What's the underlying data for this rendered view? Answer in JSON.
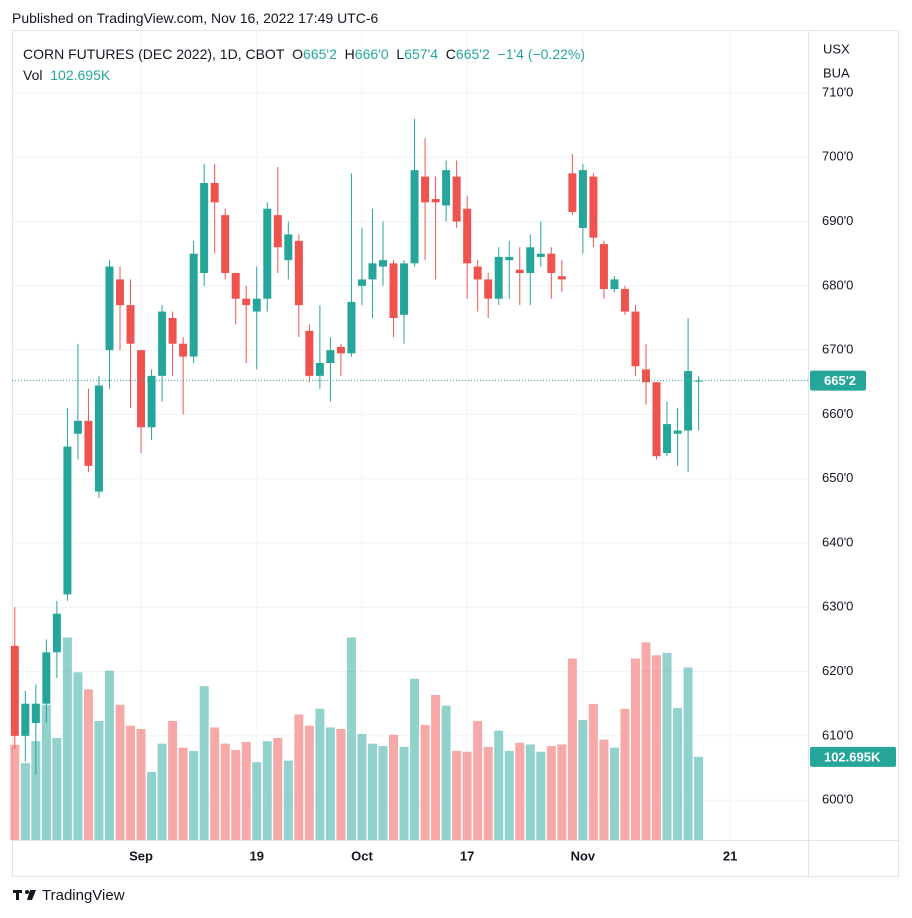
{
  "header": {
    "published": "Published on TradingView.com, Nov 16, 2022 17:49 UTC-6",
    "footer": "TradingView"
  },
  "chart_data": {
    "type": "candlestick",
    "title": "CORN FUTURES (DEC 2022), 1D, CBOT",
    "ohlc_legend": [
      {
        "key": "O",
        "value": "665'2"
      },
      {
        "key": "H",
        "value": "666'0"
      },
      {
        "key": "L",
        "value": "657'4"
      },
      {
        "key": "C",
        "value": "665'2"
      }
    ],
    "change": "−1'4 (−0.22%)",
    "volume_legend": {
      "key": "Vol",
      "value": "102.695K"
    },
    "currency": "USX",
    "unit": "BUA",
    "x": [
      "2022-08-16",
      "2022-08-17",
      "2022-08-18",
      "2022-08-19",
      "2022-08-22",
      "2022-08-23",
      "2022-08-24",
      "2022-08-25",
      "2022-08-26",
      "2022-08-29",
      "2022-08-30",
      "2022-08-31",
      "2022-09-01",
      "2022-09-02",
      "2022-09-06",
      "2022-09-07",
      "2022-09-08",
      "2022-09-09",
      "2022-09-12",
      "2022-09-13",
      "2022-09-14",
      "2022-09-15",
      "2022-09-16",
      "2022-09-19",
      "2022-09-20",
      "2022-09-21",
      "2022-09-22",
      "2022-09-23",
      "2022-09-26",
      "2022-09-27",
      "2022-09-28",
      "2022-09-29",
      "2022-09-30",
      "2022-10-03",
      "2022-10-04",
      "2022-10-05",
      "2022-10-06",
      "2022-10-07",
      "2022-10-10",
      "2022-10-11",
      "2022-10-12",
      "2022-10-13",
      "2022-10-14",
      "2022-10-17",
      "2022-10-18",
      "2022-10-19",
      "2022-10-20",
      "2022-10-21",
      "2022-10-24",
      "2022-10-25",
      "2022-10-26",
      "2022-10-27",
      "2022-10-28",
      "2022-10-31",
      "2022-11-01",
      "2022-11-02",
      "2022-11-03",
      "2022-11-04",
      "2022-11-07",
      "2022-11-08",
      "2022-11-09",
      "2022-11-10",
      "2022-11-11",
      "2022-11-14",
      "2022-11-15",
      "2022-11-16"
    ],
    "open": [
      624,
      610,
      612,
      615,
      623,
      632,
      657,
      659,
      648,
      670,
      681,
      677,
      670,
      658,
      666,
      675,
      671,
      669,
      682,
      696,
      691,
      682,
      678,
      676,
      678,
      691,
      684,
      687,
      673,
      666,
      668,
      670.5,
      669.5,
      680,
      681,
      683,
      683.5,
      675.5,
      683.5,
      697,
      693.5,
      692.5,
      697,
      692,
      683,
      681,
      678,
      684,
      682.5,
      682,
      684.5,
      685,
      681.5,
      697.5,
      689,
      697,
      686.5,
      679.5,
      679.5,
      676,
      667,
      665,
      654,
      657,
      657.5,
      665.25
    ],
    "high": [
      630,
      617,
      618,
      625,
      631,
      661,
      671,
      664,
      666,
      684,
      683,
      681,
      670,
      667,
      677,
      676,
      672,
      687,
      699,
      699,
      692,
      682,
      680,
      683,
      693,
      698.5,
      690,
      688,
      674,
      677,
      672,
      671,
      697.5,
      689,
      692,
      690,
      684,
      684,
      706,
      703,
      697,
      699.5,
      699.5,
      694,
      684,
      682,
      686,
      687,
      686,
      688,
      690,
      686,
      684,
      700.5,
      699,
      697.5,
      687,
      681.5,
      680,
      677,
      671,
      665,
      662,
      661,
      675,
      666
    ],
    "low": [
      608,
      606,
      604,
      612,
      619,
      631,
      653,
      651,
      647,
      664,
      670,
      661,
      654,
      656,
      662,
      666,
      660,
      668,
      680,
      685,
      681,
      674,
      668,
      667,
      676,
      682,
      681,
      672,
      665,
      664,
      662,
      666,
      669,
      677,
      675,
      680,
      672,
      671,
      683,
      684,
      681,
      690,
      689,
      678,
      676,
      675,
      677,
      678,
      677,
      677,
      683,
      678,
      679,
      691,
      685,
      686,
      678,
      679,
      675.5,
      666,
      661.5,
      653,
      653.5,
      652,
      651,
      657.5
    ],
    "close": [
      610,
      615,
      615,
      623,
      629,
      655,
      659,
      652,
      664.5,
      683,
      677,
      671,
      658,
      666,
      676,
      671,
      669,
      685,
      696,
      693,
      682,
      678,
      677,
      678,
      692,
      686,
      688,
      677,
      666,
      668,
      670,
      669.5,
      677.5,
      681,
      683.5,
      684,
      675,
      683.5,
      698,
      693,
      693,
      698,
      690,
      683.5,
      681,
      678,
      684.5,
      684.5,
      682,
      686,
      685,
      682,
      681,
      691.5,
      698,
      687.5,
      679.5,
      681,
      676,
      667.5,
      665,
      653.5,
      658.5,
      657.5,
      666.75,
      665.25
    ],
    "volume": [
      117500,
      95000,
      122000,
      167000,
      126000,
      250000,
      207000,
      186000,
      147000,
      209000,
      167000,
      141000,
      137000,
      84000,
      119000,
      147000,
      114000,
      110000,
      190000,
      139000,
      119000,
      111000,
      121000,
      96000,
      122000,
      126000,
      98000,
      155000,
      141000,
      162000,
      139000,
      137000,
      250000,
      131000,
      119000,
      116000,
      130000,
      115000,
      199000,
      142000,
      179000,
      166000,
      110000,
      109000,
      147000,
      115000,
      135000,
      110000,
      120000,
      118000,
      109000,
      116000,
      118000,
      224000,
      148000,
      168000,
      124000,
      114000,
      162000,
      224000,
      244000,
      228000,
      231000,
      163000,
      213000,
      102695
    ],
    "volume_value_labels": [
      null,
      null,
      null,
      null,
      null,
      null,
      null,
      null,
      null,
      null,
      null,
      null,
      null,
      null,
      null,
      null,
      null,
      null,
      null,
      null,
      null,
      null,
      null,
      null,
      null,
      null,
      null,
      null,
      null,
      null,
      null,
      null,
      null,
      null,
      null,
      null,
      null,
      null,
      null,
      null,
      null,
      null,
      null,
      null,
      null,
      null,
      null,
      null,
      null,
      null,
      null,
      null,
      null,
      null,
      null,
      null,
      null,
      null,
      null,
      null,
      null,
      null,
      null,
      null,
      null,
      "102.695K"
    ],
    "last_price": {
      "value": 665.25,
      "label": "665'2"
    },
    "up_color": "#26a69a",
    "down_color": "#ef5350",
    "ylim": [
      593.8,
      719.8
    ],
    "volume_ylim": [
      0,
      1000000
    ],
    "yticks": [
      {
        "value": 600,
        "label": "600'0"
      },
      {
        "value": 610,
        "label": "610'0"
      },
      {
        "value": 620,
        "label": "620'0"
      },
      {
        "value": 630,
        "label": "630'0"
      },
      {
        "value": 640,
        "label": "640'0"
      },
      {
        "value": 650,
        "label": "650'0"
      },
      {
        "value": 660,
        "label": "660'0"
      },
      {
        "value": 670,
        "label": "670'0"
      },
      {
        "value": 680,
        "label": "680'0"
      },
      {
        "value": 690,
        "label": "690'0"
      },
      {
        "value": 700,
        "label": "700'0"
      },
      {
        "value": 710,
        "label": "710'0"
      }
    ],
    "xticks": [
      {
        "value": "2022-09-01",
        "label": "Sep"
      },
      {
        "value": "2022-09-19",
        "label": "19"
      },
      {
        "value": "2022-10-03",
        "label": "Oct"
      },
      {
        "value": "2022-10-17",
        "label": "17"
      },
      {
        "value": "2022-11-01",
        "label": "Nov"
      },
      {
        "value": "2022-11-21",
        "label": "21"
      }
    ],
    "grid": true
  }
}
